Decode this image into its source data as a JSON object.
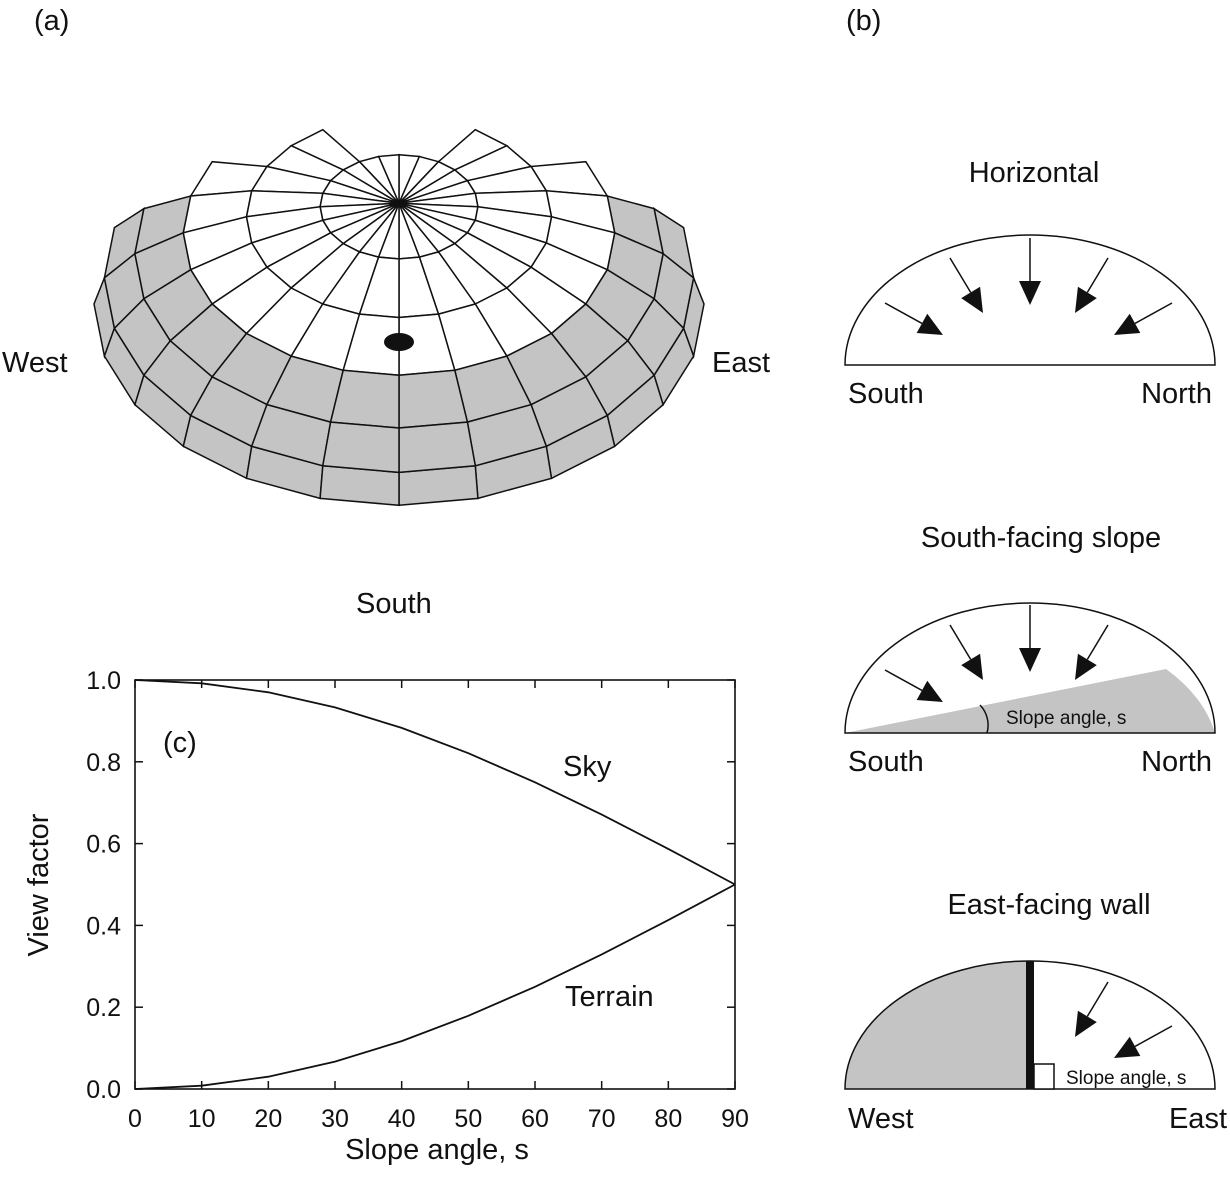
{
  "panel_labels": {
    "a": "(a)",
    "b": "(b)",
    "c": "(c)"
  },
  "dome": {
    "west": "West",
    "east": "East",
    "south": "South"
  },
  "profiles": [
    {
      "title": "Horizontal",
      "left": "South",
      "right": "North",
      "angle_label": ""
    },
    {
      "title": "South-facing slope",
      "left": "South",
      "right": "North",
      "angle_label": "Slope angle, s"
    },
    {
      "title": "East-facing wall",
      "left": "West",
      "right": "East",
      "angle_label": "Slope angle, s"
    }
  ],
  "colors": {
    "ground": "#c4c4c4",
    "line": "#111111",
    "background": "#ffffff"
  },
  "chart_data": {
    "type": "line",
    "panel": "(c)",
    "xlabel": "Slope angle, s",
    "ylabel": "View factor",
    "xlim": [
      0,
      90
    ],
    "ylim": [
      0.0,
      1.0
    ],
    "xticks": [
      "0",
      "10",
      "20",
      "30",
      "40",
      "50",
      "60",
      "70",
      "80",
      "90"
    ],
    "yticks": [
      "0.0",
      "0.2",
      "0.4",
      "0.6",
      "0.8",
      "1.0"
    ],
    "x": [
      0,
      10,
      20,
      30,
      40,
      50,
      60,
      70,
      80,
      90
    ],
    "series": [
      {
        "name": "Sky",
        "values": [
          1.0,
          0.992,
          0.97,
          0.933,
          0.883,
          0.821,
          0.75,
          0.671,
          0.587,
          0.5
        ]
      },
      {
        "name": "Terrain",
        "values": [
          0.0,
          0.008,
          0.03,
          0.067,
          0.117,
          0.179,
          0.25,
          0.329,
          0.413,
          0.5
        ]
      }
    ],
    "grid": false,
    "legend": "none"
  }
}
